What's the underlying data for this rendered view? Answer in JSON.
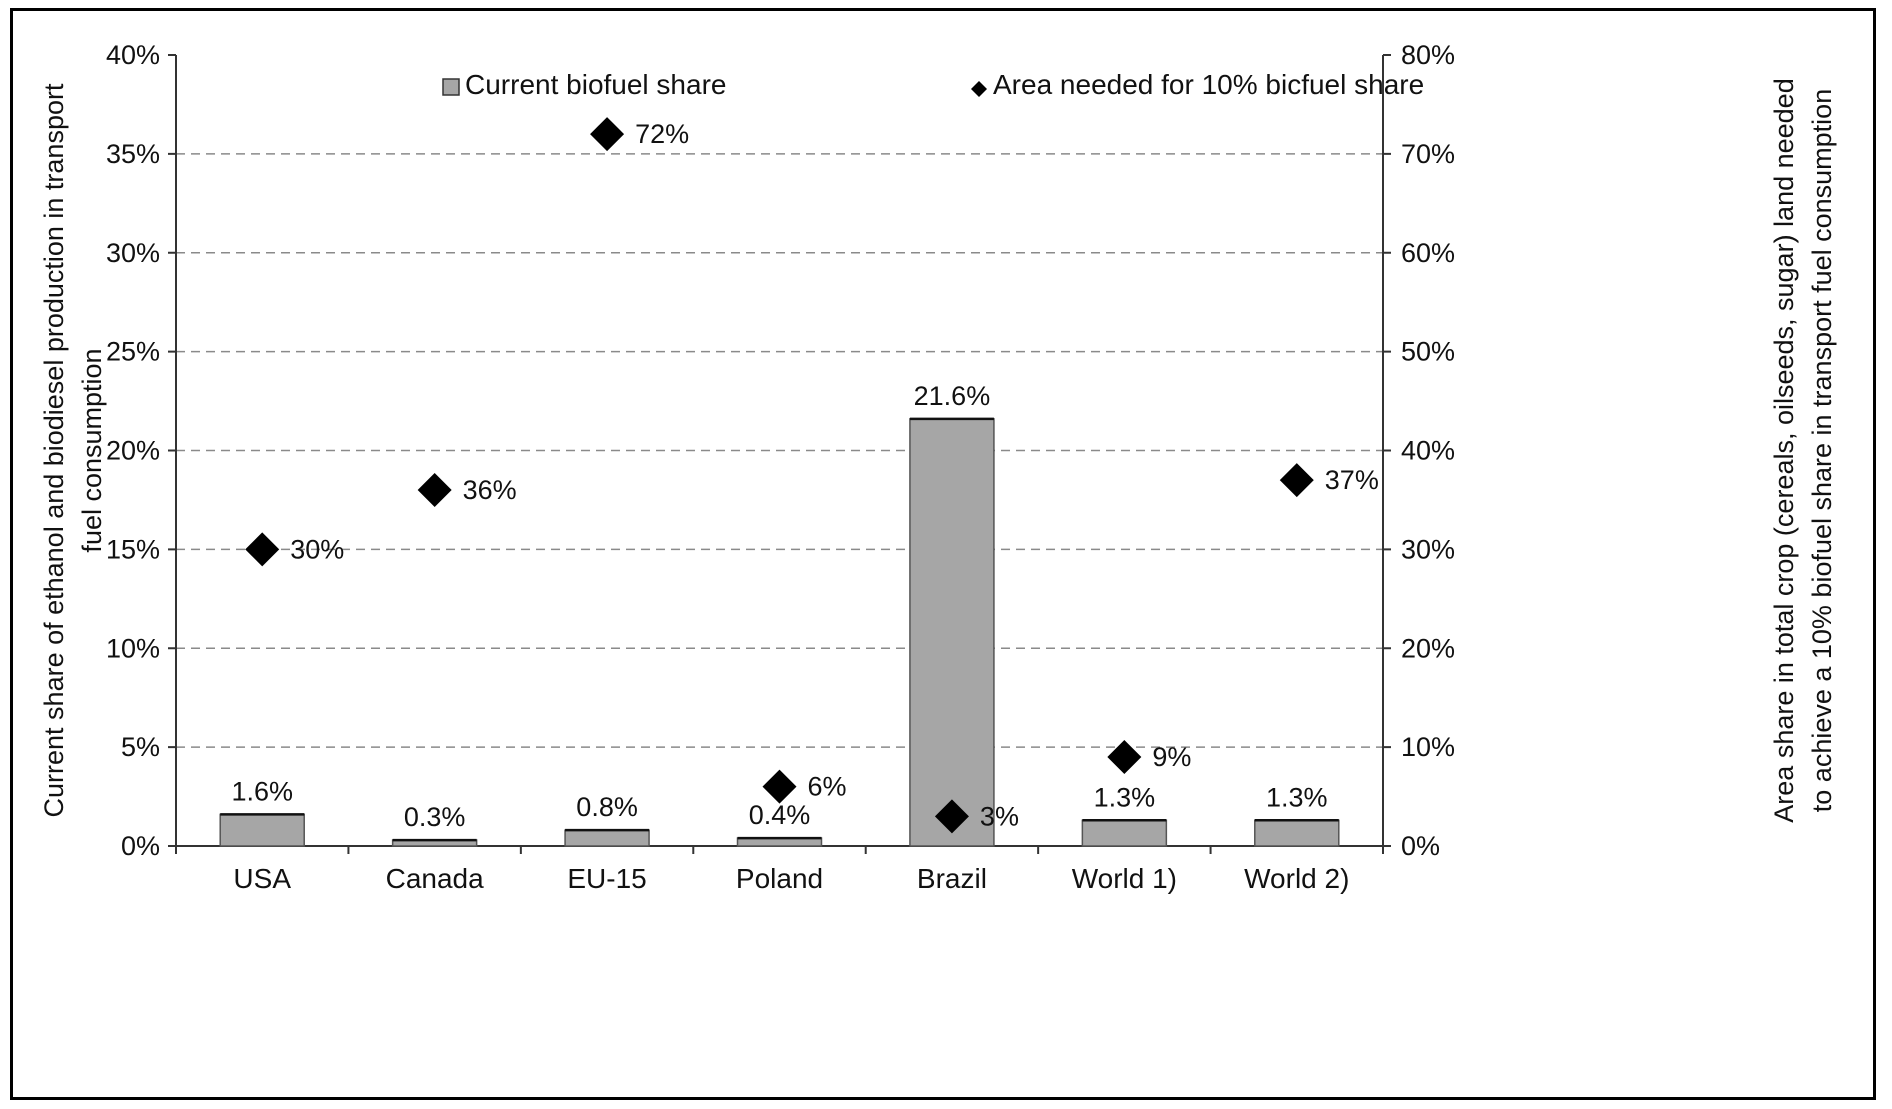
{
  "chart_data": {
    "type": "bar",
    "categories": [
      "USA",
      "Canada",
      "EU-15",
      "Poland",
      "Brazil",
      "World 1)",
      "World 2)"
    ],
    "series": [
      {
        "name": "Current biofuel share",
        "axis": "left",
        "kind": "bar",
        "values": [
          1.6,
          0.3,
          0.8,
          0.4,
          21.6,
          1.3,
          1.3
        ],
        "labels": [
          "1.6%",
          "0.3%",
          "0.8%",
          "0.4%",
          "21.6%",
          "1.3%",
          "1.3%"
        ],
        "color": "#a6a6a6"
      },
      {
        "name": "Area needed for 10% bicfuel share",
        "axis": "right",
        "kind": "marker",
        "values": [
          30,
          36,
          72,
          6,
          3,
          9,
          37
        ],
        "labels": [
          "30%",
          "36%",
          "72%",
          "6%",
          "3%",
          "9%",
          "37%"
        ],
        "color": "#000000"
      }
    ],
    "ylim_left": [
      0,
      40
    ],
    "ylim_right": [
      0,
      80
    ],
    "yticks_left": [
      "0%",
      "5%",
      "10%",
      "15%",
      "20%",
      "25%",
      "30%",
      "35%",
      "40%"
    ],
    "yticks_right": [
      "0%",
      "10%",
      "20%",
      "30%",
      "40%",
      "50%",
      "60%",
      "70%",
      "80%"
    ],
    "ylabel_left": [
      "Current share of ethanol and biodiesel production in transport",
      "fuel consumption"
    ],
    "ylabel_right": [
      "Area share in total crop (cereals, oilseeds, sugar) land needed",
      "to achieve a 10% biofuel share in transport fuel consumption"
    ],
    "xlabel": "",
    "title": "",
    "grid": "horizontal dashed",
    "legend_position": "top"
  }
}
